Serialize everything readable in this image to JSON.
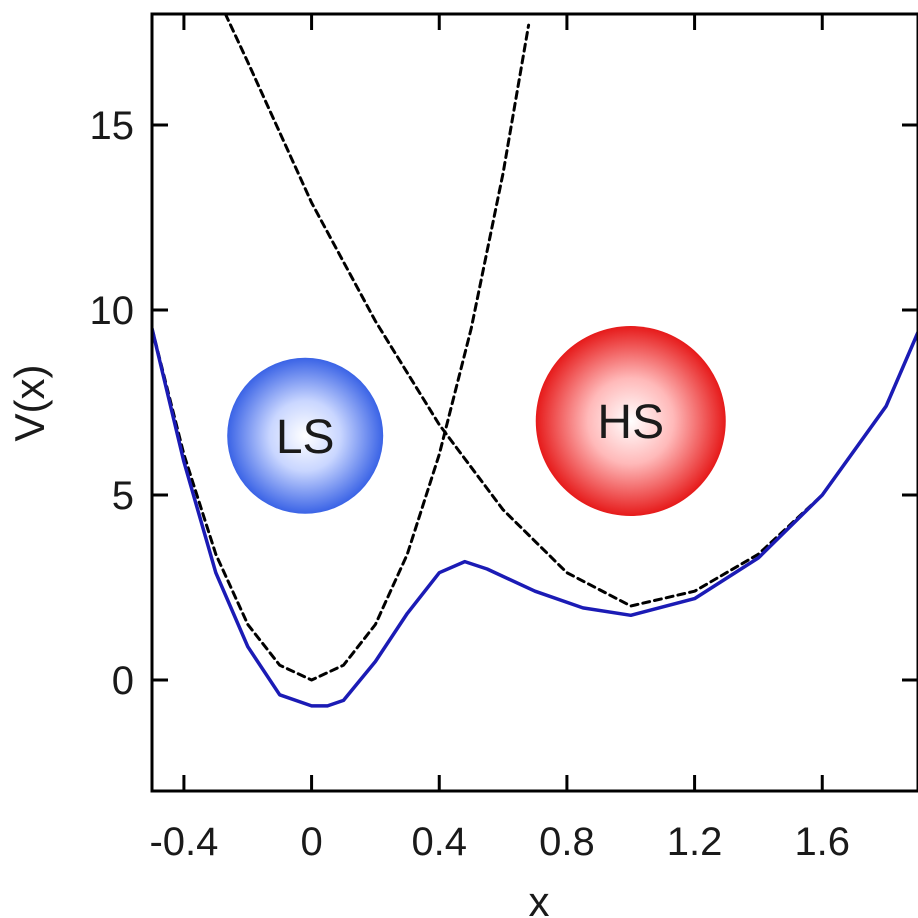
{
  "chart_data": {
    "type": "line",
    "title": "",
    "xlabel": "x",
    "ylabel": "V(x)",
    "xlim": [
      -0.5,
      1.9
    ],
    "ylim": [
      -3,
      18
    ],
    "x_ticks": [
      "-0.4",
      "0",
      "0.4",
      "0.8",
      "1.2",
      "1.6"
    ],
    "y_ticks": [
      "0",
      "5",
      "10",
      "15"
    ],
    "grid": false,
    "series": [
      {
        "style": "dashed",
        "color": "#000000",
        "x": [
          -0.5,
          -0.4,
          -0.3,
          -0.2,
          -0.1,
          0.0,
          0.1,
          0.2,
          0.3,
          0.4,
          0.5,
          0.6,
          0.68
        ],
        "y": [
          9.5,
          6.1,
          3.4,
          1.5,
          0.4,
          0.0,
          0.4,
          1.5,
          3.4,
          6.1,
          9.5,
          13.7,
          17.7
        ]
      },
      {
        "style": "dashed",
        "color": "#000000",
        "x": [
          -0.27,
          -0.2,
          0.0,
          0.2,
          0.4,
          0.6,
          0.8,
          1.0,
          1.2,
          1.4,
          1.6,
          1.8,
          1.9
        ],
        "y": [
          18.0,
          16.7,
          12.9,
          9.7,
          6.9,
          4.6,
          2.9,
          2.0,
          2.4,
          3.4,
          5.0,
          7.4,
          9.4
        ]
      },
      {
        "style": "solid",
        "color": "#1b1bb5",
        "x": [
          -0.5,
          -0.4,
          -0.3,
          -0.2,
          -0.1,
          0.0,
          0.05,
          0.1,
          0.2,
          0.3,
          0.4,
          0.48,
          0.55,
          0.7,
          0.85,
          1.0,
          1.2,
          1.4,
          1.6,
          1.8,
          1.9
        ],
        "y": [
          9.5,
          5.9,
          2.9,
          0.9,
          -0.4,
          -0.7,
          -0.7,
          -0.55,
          0.5,
          1.8,
          2.9,
          3.2,
          3.0,
          2.4,
          1.95,
          1.75,
          2.2,
          3.3,
          5.0,
          7.4,
          9.4
        ]
      }
    ],
    "annotations": [
      {
        "text": "LS",
        "x": -0.02,
        "y": 6.6,
        "color": "#2f5fe0"
      },
      {
        "text": "HS",
        "x": 1.0,
        "y": 7.0,
        "color": "#e01b1b"
      }
    ]
  }
}
